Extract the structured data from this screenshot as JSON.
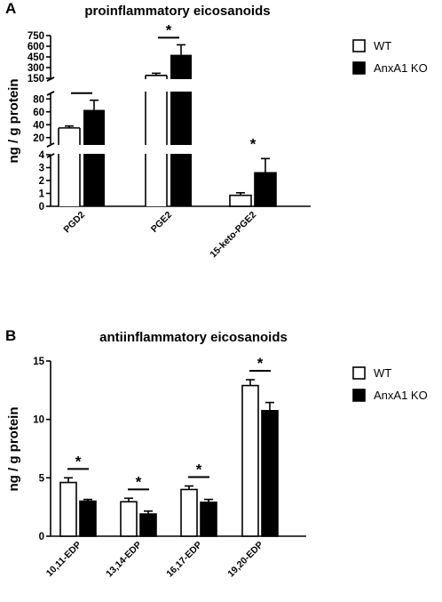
{
  "chart_data": [
    {
      "panel": "A",
      "type": "bar",
      "title": "proinflammatory eicosanoids",
      "ylabel": "ng / g protein",
      "axis_segments": [
        {
          "range": [
            0,
            4
          ],
          "ticks": [
            "0",
            "1",
            "2",
            "3",
            "4"
          ]
        },
        {
          "range": [
            10,
            90
          ],
          "ticks": [
            "20",
            "40",
            "60",
            "80"
          ]
        },
        {
          "range": [
            150,
            750
          ],
          "ticks": [
            "150",
            "300",
            "450",
            "600",
            "750"
          ]
        }
      ],
      "categories": [
        "PGD2",
        "PGE2",
        "15-keto-PGE2"
      ],
      "legend": [
        "WT",
        "AnxA1 KO"
      ],
      "series": [
        {
          "name": "WT",
          "color": "#ffffff",
          "values": [
            35,
            190,
            0.85
          ],
          "errors": [
            3,
            30,
            0.2
          ]
        },
        {
          "name": "AnxA1 KO",
          "color": "#000000",
          "values": [
            63,
            480,
            2.6
          ],
          "errors": [
            15,
            140,
            1.1
          ]
        }
      ],
      "significance": [
        "*",
        "*",
        "*"
      ]
    },
    {
      "panel": "B",
      "type": "bar",
      "title": "antiinflammatory eicosanoids",
      "ylabel": "ng / g protein",
      "ylim": [
        0,
        15
      ],
      "ticks": [
        "0",
        "5",
        "10",
        "15"
      ],
      "categories": [
        "10,11-EDP",
        "13,14-EDP",
        "16,17-EDP",
        "19,20-EDP"
      ],
      "legend": [
        "WT",
        "AnxA1 KO"
      ],
      "series": [
        {
          "name": "WT",
          "color": "#ffffff",
          "values": [
            4.6,
            2.95,
            4.0,
            12.9
          ],
          "errors": [
            0.4,
            0.3,
            0.3,
            0.5
          ]
        },
        {
          "name": "AnxA1 KO",
          "color": "#000000",
          "values": [
            3.0,
            1.9,
            2.9,
            10.75
          ],
          "errors": [
            0.15,
            0.25,
            0.25,
            0.7
          ]
        }
      ],
      "significance": [
        "*",
        "*",
        "*",
        "*"
      ]
    }
  ]
}
